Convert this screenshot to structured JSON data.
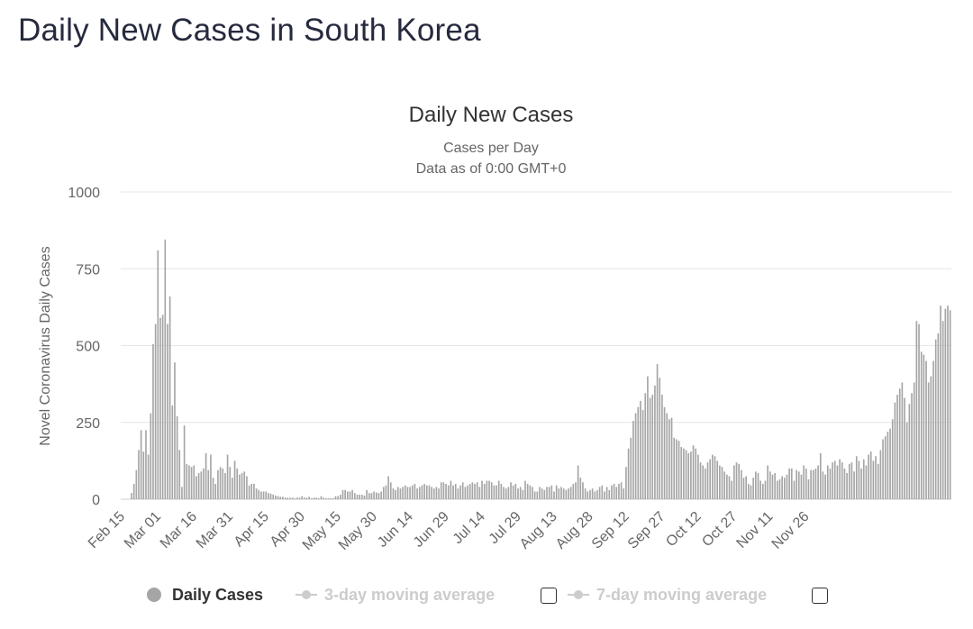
{
  "page": {
    "heading": "Daily New Cases in South Korea"
  },
  "legend": {
    "daily_cases": "Daily Cases",
    "ma3": "3-day moving average",
    "ma7": "7-day moving average"
  },
  "colors": {
    "bar": "#a5a5a5",
    "grid": "#e6e6e6",
    "axis_text": "#666666",
    "title": "#333333",
    "legend_active": "#333333",
    "legend_inactive": "#cccccc"
  },
  "chart_data": {
    "type": "bar",
    "title": "Daily New Cases",
    "subtitle": [
      "Cases per Day",
      "Data as of 0:00 GMT+0"
    ],
    "ylabel": "Novel Coronavirus Daily Cases",
    "xlabel": "",
    "ylim": [
      0,
      1000
    ],
    "yticks": [
      0,
      250,
      500,
      750,
      1000
    ],
    "x_start": "Feb 15",
    "x_tick_labels": [
      "Feb 15",
      "Mar 01",
      "Mar 16",
      "Mar 31",
      "Apr 15",
      "Apr 30",
      "May 15",
      "May 30",
      "Jun 14",
      "Jun 29",
      "Jul 14",
      "Jul 29",
      "Aug 13",
      "Aug 28",
      "Sep 12",
      "Sep 27",
      "Oct 12",
      "Oct 27",
      "Nov 11",
      "Nov 26"
    ],
    "grid": true,
    "legend_position": "bottom",
    "series": [
      {
        "name": "Daily Cases",
        "values": [
          0,
          0,
          0,
          0,
          20,
          50,
          95,
          160,
          225,
          155,
          225,
          145,
          280,
          505,
          570,
          810,
          590,
          600,
          845,
          570,
          660,
          305,
          445,
          270,
          160,
          40,
          240,
          115,
          110,
          105,
          110,
          75,
          85,
          90,
          100,
          150,
          95,
          145,
          70,
          50,
          95,
          105,
          100,
          85,
          145,
          105,
          70,
          125,
          100,
          80,
          85,
          90,
          75,
          45,
          50,
          50,
          35,
          30,
          25,
          25,
          25,
          20,
          18,
          15,
          12,
          10,
          8,
          8,
          5,
          5,
          5,
          5,
          3,
          5,
          5,
          10,
          5,
          5,
          8,
          3,
          5,
          5,
          3,
          10,
          5,
          3,
          3,
          3,
          3,
          10,
          10,
          15,
          30,
          30,
          25,
          25,
          30,
          20,
          15,
          15,
          15,
          12,
          30,
          20,
          20,
          25,
          22,
          20,
          25,
          40,
          45,
          75,
          55,
          35,
          30,
          40,
          35,
          40,
          45,
          40,
          40,
          45,
          50,
          35,
          40,
          45,
          50,
          45,
          45,
          40,
          35,
          40,
          35,
          55,
          55,
          50,
          45,
          60,
          45,
          50,
          35,
          45,
          55,
          40,
          45,
          50,
          55,
          50,
          55,
          40,
          60,
          50,
          60,
          60,
          55,
          45,
          45,
          60,
          50,
          40,
          35,
          40,
          55,
          45,
          50,
          35,
          40,
          30,
          60,
          50,
          45,
          40,
          25,
          25,
          40,
          35,
          30,
          40,
          40,
          45,
          25,
          45,
          35,
          40,
          35,
          30,
          35,
          40,
          50,
          55,
          110,
          70,
          55,
          35,
          25,
          30,
          35,
          25,
          30,
          40,
          45,
          25,
          40,
          30,
          45,
          50,
          40,
          50,
          55,
          35,
          105,
          165,
          200,
          255,
          280,
          300,
          320,
          290,
          345,
          400,
          330,
          340,
          370,
          440,
          395,
          340,
          300,
          280,
          260,
          265,
          200,
          195,
          190,
          170,
          165,
          160,
          150,
          155,
          175,
          165,
          145,
          120,
          110,
          100,
          120,
          130,
          145,
          140,
          125,
          110,
          105,
          90,
          80,
          75,
          60,
          110,
          120,
          115,
          95,
          70,
          75,
          50,
          45,
          70,
          90,
          85,
          60,
          50,
          60,
          110,
          90,
          80,
          85,
          60,
          65,
          75,
          70,
          80,
          100,
          100,
          60,
          95,
          90,
          80,
          110,
          100,
          65,
          95,
          95,
          100,
          110,
          150,
          90,
          80,
          110,
          100,
          120,
          125,
          110,
          130,
          120,
          100,
          85,
          115,
          120,
          90,
          140,
          125,
          100,
          130,
          110,
          145,
          155,
          125,
          140,
          115,
          160,
          195,
          205,
          220,
          230,
          260,
          315,
          340,
          360,
          380,
          330,
          250,
          310,
          345,
          380,
          580,
          570,
          480,
          470,
          450,
          380,
          400,
          450,
          520,
          540,
          630,
          580,
          620,
          630,
          615
        ]
      },
      {
        "name": "3-day moving average",
        "values": []
      },
      {
        "name": "7-day moving average",
        "values": []
      }
    ]
  }
}
